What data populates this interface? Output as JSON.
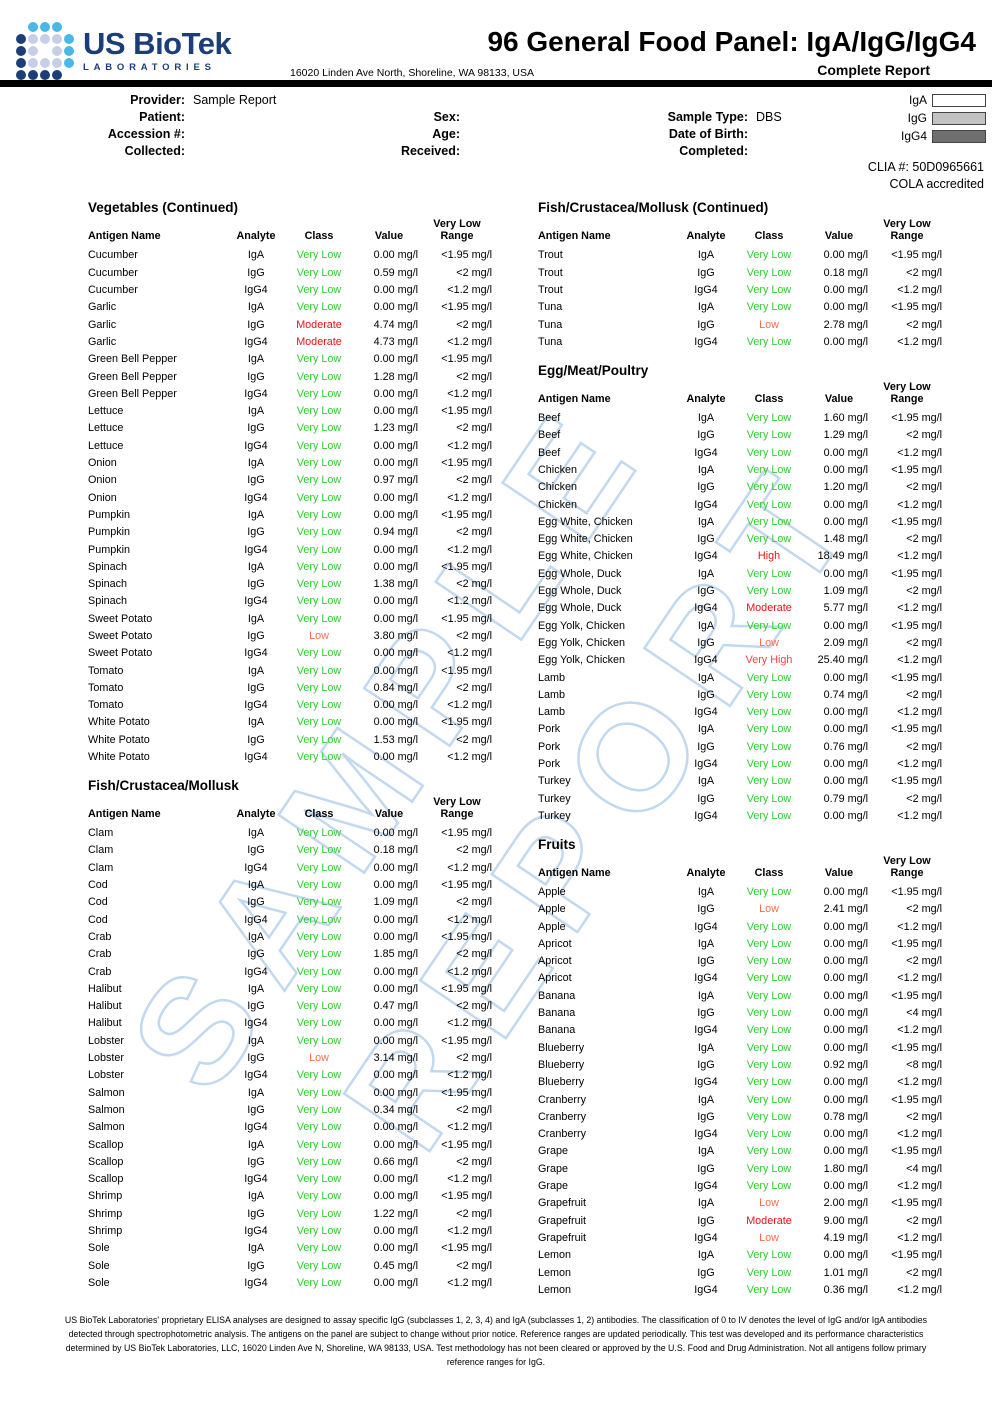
{
  "header": {
    "logo": {
      "name": "US BioTek",
      "sub": "LABORATORIES",
      "dots": [
        [
          null,
          "#49b8e6",
          "#49b8e6",
          "#49b8e6",
          null
        ],
        [
          "#1c3e78",
          "#c7cfe8",
          "#c7cfe8",
          "#c7cfe8",
          "#49b8e6"
        ],
        [
          "#1c3e78",
          "#c7cfe8",
          null,
          "#c7cfe8",
          "#49b8e6"
        ],
        [
          "#1c3e78",
          "#c7cfe8",
          "#c7cfe8",
          "#c7cfe8",
          "#49b8e6"
        ],
        [
          "#1c3e78",
          "#1c3e78",
          "#1c3e78",
          "#1c3e78",
          null
        ]
      ]
    },
    "title": "96 General Food Panel: IgA/IgG/IgG4",
    "address": "16020 Linden Ave North, Shoreline, WA 98133, USA",
    "report_type": "Complete Report"
  },
  "info": {
    "rows": [
      {
        "l1": "Provider:",
        "v1": "Sample Report",
        "l2": "",
        "v2": "",
        "l3": "",
        "v3": ""
      },
      {
        "l1": "Patient:",
        "v1": "",
        "l2": "Sex:",
        "v2": "",
        "l3": "Sample Type:",
        "v3": "DBS"
      },
      {
        "l1": "Accession #:",
        "v1": "",
        "l2": "Age:",
        "v2": "",
        "l3": "Date of Birth:",
        "v3": ""
      },
      {
        "l1": "Collected:",
        "v1": "",
        "l2": "Received:",
        "v2": "",
        "l3": "Completed:",
        "v3": ""
      }
    ]
  },
  "legend": [
    {
      "label": "IgA",
      "color": "#ffffff"
    },
    {
      "label": "IgG",
      "color": "#c2c2c2"
    },
    {
      "label": "IgG4",
      "color": "#6f6f6f"
    }
  ],
  "accreditation": {
    "clia": "CLIA #: 50D0965661",
    "cola": "COLA accredited"
  },
  "table_columns": [
    "Antigen Name",
    "Analyte",
    "Class",
    "Value",
    "Very Low Range"
  ],
  "class_colors": {
    "Very Low": "#33cc33",
    "Low": "#ff6d4a",
    "Moderate": "#ee1111",
    "High": "#ee1111",
    "Very High": "#fc4141"
  },
  "sections": [
    {
      "id": "vegetables-continued",
      "column": "left",
      "title": "Vegetables (Continued)",
      "rows": [
        [
          "Cucumber",
          "IgA",
          "Very Low",
          "0.00 mg/l",
          "<1.95 mg/l"
        ],
        [
          "Cucumber",
          "IgG",
          "Very Low",
          "0.59 mg/l",
          "<2 mg/l"
        ],
        [
          "Cucumber",
          "IgG4",
          "Very Low",
          "0.00 mg/l",
          "<1.2 mg/l"
        ],
        [
          "Garlic",
          "IgA",
          "Very Low",
          "0.00 mg/l",
          "<1.95 mg/l"
        ],
        [
          "Garlic",
          "IgG",
          "Moderate",
          "4.74 mg/l",
          "<2 mg/l"
        ],
        [
          "Garlic",
          "IgG4",
          "Moderate",
          "4.73 mg/l",
          "<1.2 mg/l"
        ],
        [
          "Green Bell Pepper",
          "IgA",
          "Very Low",
          "0.00 mg/l",
          "<1.95 mg/l"
        ],
        [
          "Green Bell Pepper",
          "IgG",
          "Very Low",
          "1.28 mg/l",
          "<2 mg/l"
        ],
        [
          "Green Bell Pepper",
          "IgG4",
          "Very Low",
          "0.00 mg/l",
          "<1.2 mg/l"
        ],
        [
          "Lettuce",
          "IgA",
          "Very Low",
          "0.00 mg/l",
          "<1.95 mg/l"
        ],
        [
          "Lettuce",
          "IgG",
          "Very Low",
          "1.23 mg/l",
          "<2 mg/l"
        ],
        [
          "Lettuce",
          "IgG4",
          "Very Low",
          "0.00 mg/l",
          "<1.2 mg/l"
        ],
        [
          "Onion",
          "IgA",
          "Very Low",
          "0.00 mg/l",
          "<1.95 mg/l"
        ],
        [
          "Onion",
          "IgG",
          "Very Low",
          "0.97 mg/l",
          "<2 mg/l"
        ],
        [
          "Onion",
          "IgG4",
          "Very Low",
          "0.00 mg/l",
          "<1.2 mg/l"
        ],
        [
          "Pumpkin",
          "IgA",
          "Very Low",
          "0.00 mg/l",
          "<1.95 mg/l"
        ],
        [
          "Pumpkin",
          "IgG",
          "Very Low",
          "0.94 mg/l",
          "<2 mg/l"
        ],
        [
          "Pumpkin",
          "IgG4",
          "Very Low",
          "0.00 mg/l",
          "<1.2 mg/l"
        ],
        [
          "Spinach",
          "IgA",
          "Very Low",
          "0.00 mg/l",
          "<1.95 mg/l"
        ],
        [
          "Spinach",
          "IgG",
          "Very Low",
          "1.38 mg/l",
          "<2 mg/l"
        ],
        [
          "Spinach",
          "IgG4",
          "Very Low",
          "0.00 mg/l",
          "<1.2 mg/l"
        ],
        [
          "Sweet Potato",
          "IgA",
          "Very Low",
          "0.00 mg/l",
          "<1.95 mg/l"
        ],
        [
          "Sweet Potato",
          "IgG",
          "Low",
          "3.80 mg/l",
          "<2 mg/l"
        ],
        [
          "Sweet Potato",
          "IgG4",
          "Very Low",
          "0.00 mg/l",
          "<1.2 mg/l"
        ],
        [
          "Tomato",
          "IgA",
          "Very Low",
          "0.00 mg/l",
          "<1.95 mg/l"
        ],
        [
          "Tomato",
          "IgG",
          "Very Low",
          "0.84 mg/l",
          "<2 mg/l"
        ],
        [
          "Tomato",
          "IgG4",
          "Very Low",
          "0.00 mg/l",
          "<1.2 mg/l"
        ],
        [
          "White Potato",
          "IgA",
          "Very Low",
          "0.00 mg/l",
          "<1.95 mg/l"
        ],
        [
          "White Potato",
          "IgG",
          "Very Low",
          "1.53 mg/l",
          "<2 mg/l"
        ],
        [
          "White Potato",
          "IgG4",
          "Very Low",
          "0.00 mg/l",
          "<1.2 mg/l"
        ]
      ]
    },
    {
      "id": "fish-crustacea-mollusk",
      "column": "left",
      "title": "Fish/Crustacea/Mollusk",
      "rows": [
        [
          "Clam",
          "IgA",
          "Very Low",
          "0.00 mg/l",
          "<1.95 mg/l"
        ],
        [
          "Clam",
          "IgG",
          "Very Low",
          "0.18 mg/l",
          "<2 mg/l"
        ],
        [
          "Clam",
          "IgG4",
          "Very Low",
          "0.00 mg/l",
          "<1.2 mg/l"
        ],
        [
          "Cod",
          "IgA",
          "Very Low",
          "0.00 mg/l",
          "<1.95 mg/l"
        ],
        [
          "Cod",
          "IgG",
          "Very Low",
          "1.09 mg/l",
          "<2 mg/l"
        ],
        [
          "Cod",
          "IgG4",
          "Very Low",
          "0.00 mg/l",
          "<1.2 mg/l"
        ],
        [
          "Crab",
          "IgA",
          "Very Low",
          "0.00 mg/l",
          "<1.95 mg/l"
        ],
        [
          "Crab",
          "IgG",
          "Very Low",
          "1.85 mg/l",
          "<2 mg/l"
        ],
        [
          "Crab",
          "IgG4",
          "Very Low",
          "0.00 mg/l",
          "<1.2 mg/l"
        ],
        [
          "Halibut",
          "IgA",
          "Very Low",
          "0.00 mg/l",
          "<1.95 mg/l"
        ],
        [
          "Halibut",
          "IgG",
          "Very Low",
          "0.47 mg/l",
          "<2 mg/l"
        ],
        [
          "Halibut",
          "IgG4",
          "Very Low",
          "0.00 mg/l",
          "<1.2 mg/l"
        ],
        [
          "Lobster",
          "IgA",
          "Very Low",
          "0.00 mg/l",
          "<1.95 mg/l"
        ],
        [
          "Lobster",
          "IgG",
          "Low",
          "3.14 mg/l",
          "<2 mg/l"
        ],
        [
          "Lobster",
          "IgG4",
          "Very Low",
          "0.00 mg/l",
          "<1.2 mg/l"
        ],
        [
          "Salmon",
          "IgA",
          "Very Low",
          "0.00 mg/l",
          "<1.95 mg/l"
        ],
        [
          "Salmon",
          "IgG",
          "Very Low",
          "0.34 mg/l",
          "<2 mg/l"
        ],
        [
          "Salmon",
          "IgG4",
          "Very Low",
          "0.00 mg/l",
          "<1.2 mg/l"
        ],
        [
          "Scallop",
          "IgA",
          "Very Low",
          "0.00 mg/l",
          "<1.95 mg/l"
        ],
        [
          "Scallop",
          "IgG",
          "Very Low",
          "0.66 mg/l",
          "<2 mg/l"
        ],
        [
          "Scallop",
          "IgG4",
          "Very Low",
          "0.00 mg/l",
          "<1.2 mg/l"
        ],
        [
          "Shrimp",
          "IgA",
          "Very Low",
          "0.00 mg/l",
          "<1.95 mg/l"
        ],
        [
          "Shrimp",
          "IgG",
          "Very Low",
          "1.22 mg/l",
          "<2 mg/l"
        ],
        [
          "Shrimp",
          "IgG4",
          "Very Low",
          "0.00 mg/l",
          "<1.2 mg/l"
        ],
        [
          "Sole",
          "IgA",
          "Very Low",
          "0.00 mg/l",
          "<1.95 mg/l"
        ],
        [
          "Sole",
          "IgG",
          "Very Low",
          "0.45 mg/l",
          "<2 mg/l"
        ],
        [
          "Sole",
          "IgG4",
          "Very Low",
          "0.00 mg/l",
          "<1.2 mg/l"
        ]
      ]
    },
    {
      "id": "fish-crustacea-mollusk-continued",
      "column": "right",
      "title": "Fish/Crustacea/Mollusk (Continued)",
      "rows": [
        [
          "Trout",
          "IgA",
          "Very Low",
          "0.00 mg/l",
          "<1.95 mg/l"
        ],
        [
          "Trout",
          "IgG",
          "Very Low",
          "0.18 mg/l",
          "<2 mg/l"
        ],
        [
          "Trout",
          "IgG4",
          "Very Low",
          "0.00 mg/l",
          "<1.2 mg/l"
        ],
        [
          "Tuna",
          "IgA",
          "Very Low",
          "0.00 mg/l",
          "<1.95 mg/l"
        ],
        [
          "Tuna",
          "IgG",
          "Low",
          "2.78 mg/l",
          "<2 mg/l"
        ],
        [
          "Tuna",
          "IgG4",
          "Very Low",
          "0.00 mg/l",
          "<1.2 mg/l"
        ]
      ]
    },
    {
      "id": "egg-meat-poultry",
      "column": "right",
      "title": "Egg/Meat/Poultry",
      "rows": [
        [
          "Beef",
          "IgA",
          "Very Low",
          "1.60 mg/l",
          "<1.95 mg/l"
        ],
        [
          "Beef",
          "IgG",
          "Very Low",
          "1.29 mg/l",
          "<2 mg/l"
        ],
        [
          "Beef",
          "IgG4",
          "Very Low",
          "0.00 mg/l",
          "<1.2 mg/l"
        ],
        [
          "Chicken",
          "IgA",
          "Very Low",
          "0.00 mg/l",
          "<1.95 mg/l"
        ],
        [
          "Chicken",
          "IgG",
          "Very Low",
          "1.20 mg/l",
          "<2 mg/l"
        ],
        [
          "Chicken",
          "IgG4",
          "Very Low",
          "0.00 mg/l",
          "<1.2 mg/l"
        ],
        [
          "Egg White, Chicken",
          "IgA",
          "Very Low",
          "0.00 mg/l",
          "<1.95 mg/l"
        ],
        [
          "Egg White, Chicken",
          "IgG",
          "Very Low",
          "1.48 mg/l",
          "<2 mg/l"
        ],
        [
          "Egg White, Chicken",
          "IgG4",
          "High",
          "18.49 mg/l",
          "<1.2 mg/l"
        ],
        [
          "Egg Whole, Duck",
          "IgA",
          "Very Low",
          "0.00 mg/l",
          "<1.95 mg/l"
        ],
        [
          "Egg Whole, Duck",
          "IgG",
          "Very Low",
          "1.09 mg/l",
          "<2 mg/l"
        ],
        [
          "Egg Whole, Duck",
          "IgG4",
          "Moderate",
          "5.77 mg/l",
          "<1.2 mg/l"
        ],
        [
          "Egg Yolk, Chicken",
          "IgA",
          "Very Low",
          "0.00 mg/l",
          "<1.95 mg/l"
        ],
        [
          "Egg Yolk, Chicken",
          "IgG",
          "Low",
          "2.09 mg/l",
          "<2 mg/l"
        ],
        [
          "Egg Yolk, Chicken",
          "IgG4",
          "Very High",
          "25.40 mg/l",
          "<1.2 mg/l"
        ],
        [
          "Lamb",
          "IgA",
          "Very Low",
          "0.00 mg/l",
          "<1.95 mg/l"
        ],
        [
          "Lamb",
          "IgG",
          "Very Low",
          "0.74 mg/l",
          "<2 mg/l"
        ],
        [
          "Lamb",
          "IgG4",
          "Very Low",
          "0.00 mg/l",
          "<1.2 mg/l"
        ],
        [
          "Pork",
          "IgA",
          "Very Low",
          "0.00 mg/l",
          "<1.95 mg/l"
        ],
        [
          "Pork",
          "IgG",
          "Very Low",
          "0.76 mg/l",
          "<2 mg/l"
        ],
        [
          "Pork",
          "IgG4",
          "Very Low",
          "0.00 mg/l",
          "<1.2 mg/l"
        ],
        [
          "Turkey",
          "IgA",
          "Very Low",
          "0.00 mg/l",
          "<1.95 mg/l"
        ],
        [
          "Turkey",
          "IgG",
          "Very Low",
          "0.79 mg/l",
          "<2 mg/l"
        ],
        [
          "Turkey",
          "IgG4",
          "Very Low",
          "0.00 mg/l",
          "<1.2 mg/l"
        ]
      ]
    },
    {
      "id": "fruits",
      "column": "right",
      "title": "Fruits",
      "rows": [
        [
          "Apple",
          "IgA",
          "Very Low",
          "0.00 mg/l",
          "<1.95 mg/l"
        ],
        [
          "Apple",
          "IgG",
          "Low",
          "2.41 mg/l",
          "<2 mg/l"
        ],
        [
          "Apple",
          "IgG4",
          "Very Low",
          "0.00 mg/l",
          "<1.2 mg/l"
        ],
        [
          "Apricot",
          "IgA",
          "Very Low",
          "0.00 mg/l",
          "<1.95 mg/l"
        ],
        [
          "Apricot",
          "IgG",
          "Very Low",
          "0.00 mg/l",
          "<2 mg/l"
        ],
        [
          "Apricot",
          "IgG4",
          "Very Low",
          "0.00 mg/l",
          "<1.2 mg/l"
        ],
        [
          "Banana",
          "IgA",
          "Very Low",
          "0.00 mg/l",
          "<1.95 mg/l"
        ],
        [
          "Banana",
          "IgG",
          "Very Low",
          "0.00 mg/l",
          "<4 mg/l"
        ],
        [
          "Banana",
          "IgG4",
          "Very Low",
          "0.00 mg/l",
          "<1.2 mg/l"
        ],
        [
          "Blueberry",
          "IgA",
          "Very Low",
          "0.00 mg/l",
          "<1.95 mg/l"
        ],
        [
          "Blueberry",
          "IgG",
          "Very Low",
          "0.92 mg/l",
          "<8 mg/l"
        ],
        [
          "Blueberry",
          "IgG4",
          "Very Low",
          "0.00 mg/l",
          "<1.2 mg/l"
        ],
        [
          "Cranberry",
          "IgA",
          "Very Low",
          "0.00 mg/l",
          "<1.95 mg/l"
        ],
        [
          "Cranberry",
          "IgG",
          "Very Low",
          "0.78 mg/l",
          "<2 mg/l"
        ],
        [
          "Cranberry",
          "IgG4",
          "Very Low",
          "0.00 mg/l",
          "<1.2 mg/l"
        ],
        [
          "Grape",
          "IgA",
          "Very Low",
          "0.00 mg/l",
          "<1.95 mg/l"
        ],
        [
          "Grape",
          "IgG",
          "Very Low",
          "1.80 mg/l",
          "<4 mg/l"
        ],
        [
          "Grape",
          "IgG4",
          "Very Low",
          "0.00 mg/l",
          "<1.2 mg/l"
        ],
        [
          "Grapefruit",
          "IgA",
          "Low",
          "2.00 mg/l",
          "<1.95 mg/l"
        ],
        [
          "Grapefruit",
          "IgG",
          "Moderate",
          "9.00 mg/l",
          "<2 mg/l"
        ],
        [
          "Grapefruit",
          "IgG4",
          "Low",
          "4.19 mg/l",
          "<1.2 mg/l"
        ],
        [
          "Lemon",
          "IgA",
          "Very Low",
          "0.00 mg/l",
          "<1.95 mg/l"
        ],
        [
          "Lemon",
          "IgG",
          "Very Low",
          "1.01 mg/l",
          "<2 mg/l"
        ],
        [
          "Lemon",
          "IgG4",
          "Very Low",
          "0.36 mg/l",
          "<1.2 mg/l"
        ]
      ]
    }
  ],
  "watermark": {
    "line1": "SAMPLE",
    "line2": "REPORT",
    "outline_color": "#c2d8ee"
  },
  "footer": "US BioTek Laboratories' proprietary ELISA analyses are designed to assay specific IgG (subclasses 1, 2, 3, 4) and IgA (subclasses 1, 2) antibodies. The classification of 0 to IV denotes the level of IgG and/or IgA antibodies detected through spectrophotometric analysis. The antigens on the panel are subject to change without prior notice. Reference ranges are updated periodically. This test was developed and its performance characteristics determined by US BioTek Laboratories, LLC, 16020 Linden Ave N, Shoreline, WA 98133, USA. Test methodology has not been cleared or approved by the U.S. Food and Drug Administration. Not all antigens follow primary reference ranges for IgG."
}
